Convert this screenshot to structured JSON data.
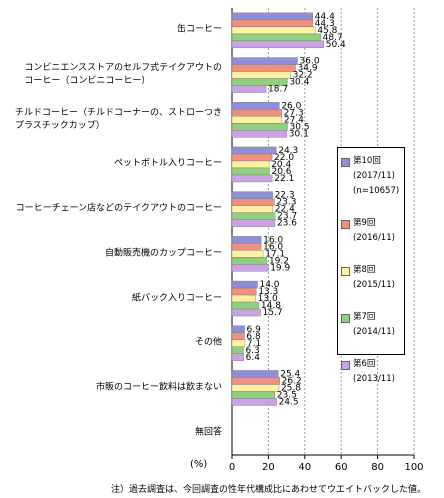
{
  "chart_data": {
    "type": "hbar",
    "categories": [
      "缶コーヒー",
      "コンビニエンスストアのセルフ式テイクアウトの\nコーヒー（コンビニコーヒー）",
      "チルドコーヒー（チルドコーナーの、ストローつき\nプラスチックカップ）",
      "ペットボトル入りコーヒー",
      "コーヒーチェーン店などのテイクアウトのコーヒー",
      "自動販売機のカップコーヒー",
      "紙パック入りコーヒー",
      "その他",
      "市販のコーヒー飲料は飲まない",
      "無回答"
    ],
    "series": [
      {
        "name": "第10回\n(2017/11)\n(n=10657)",
        "color": "#8f8fd9",
        "values": [
          44.4,
          36.0,
          26.0,
          24.3,
          22.3,
          16.0,
          14.0,
          6.9,
          25.4,
          null
        ],
        "value_labels": [
          "44.4",
          "36.0",
          "26.0",
          "24.3",
          "22.3",
          "16.0",
          "14.0",
          "6.9",
          "25.4",
          null
        ]
      },
      {
        "name": "第9回\n(2016/11)",
        "color": "#f2907f",
        "values": [
          44.3,
          34.9,
          27.3,
          22.0,
          23.3,
          16.0,
          13.3,
          6.8,
          26.2,
          null
        ],
        "value_labels": [
          "44.3",
          "34.9",
          "27.3",
          "22.0",
          "23.3",
          "16.0",
          "13.3",
          "6.8",
          "26.2",
          null
        ]
      },
      {
        "name": "第8回\n(2015/11)",
        "color": "#fff2a3",
        "values": [
          45.8,
          32.2,
          27.4,
          20.4,
          22.4,
          17.1,
          13.0,
          7.1,
          25.8,
          null
        ],
        "value_labels": [
          "45.8",
          "32.2",
          "27.4",
          "20.4",
          "22.4",
          "17.1",
          "13.0",
          "7.1",
          "25.8",
          null
        ]
      },
      {
        "name": "第7回\n(2014/11)",
        "color": "#8fcf7f",
        "values": [
          48.7,
          30.4,
          30.5,
          20.6,
          23.7,
          19.2,
          14.8,
          6.3,
          23.5,
          null
        ],
        "value_labels": [
          "48.7",
          "30.4",
          "30.5",
          "20.6",
          "23.7",
          "19.2",
          "14.8",
          "6.3",
          "23.5",
          null
        ]
      },
      {
        "name": "第6回\n(2013/11)",
        "color": "#c9a3e3",
        "values": [
          50.4,
          18.7,
          30.1,
          22.1,
          23.6,
          19.9,
          15.7,
          6.4,
          24.5,
          null
        ],
        "value_labels": [
          "50.4",
          "18.7",
          "30.1",
          "22.1",
          "23.6",
          "19.9",
          "15.7",
          "6.4",
          "24.5",
          null
        ]
      }
    ],
    "xlabel": "(%)",
    "xlim": [
      0,
      100
    ],
    "xticks": [
      0,
      20,
      40,
      60,
      80,
      100
    ],
    "grid": true,
    "note": "注）過去調査は、今回調査の性年代構成比にあわせてウエイトバックした値。"
  }
}
